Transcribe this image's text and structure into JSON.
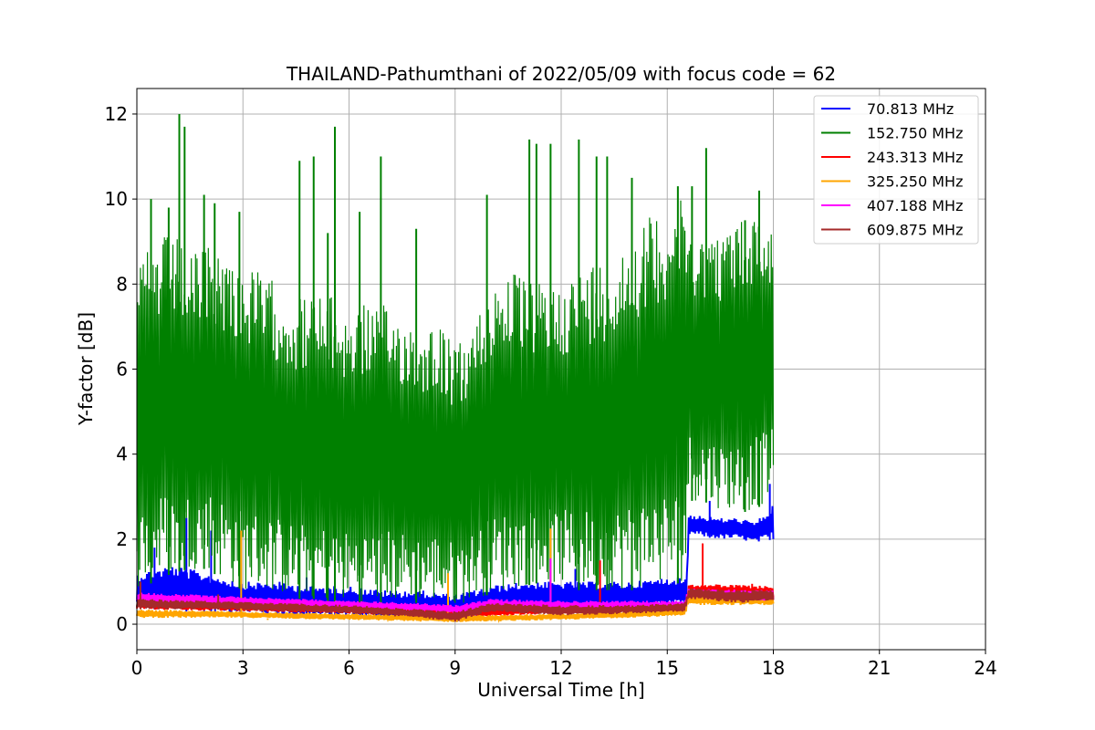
{
  "chart_data": {
    "type": "line",
    "title": "THAILAND-Pathumthani of 2022/05/09 with focus code = 62",
    "xlabel": "Universal Time [h]",
    "ylabel": "Y-factor [dB]",
    "xlim": [
      0,
      24
    ],
    "ylim": [
      -0.6,
      12.6
    ],
    "xticks": [
      "0",
      "3",
      "6",
      "9",
      "12",
      "15",
      "18",
      "21",
      "24"
    ],
    "yticks": [
      "0",
      "2",
      "4",
      "6",
      "8",
      "10",
      "12"
    ],
    "grid": true,
    "legend_position": "top-right",
    "series": [
      {
        "name": " 70.813 MHz",
        "color": "#0000ff",
        "band": [
          [
            0,
            0.4,
            1.2
          ],
          [
            1,
            0.3,
            1.4
          ],
          [
            2,
            0.3,
            1.2
          ],
          [
            3,
            0.25,
            1.0
          ],
          [
            4,
            0.2,
            1.0
          ],
          [
            5,
            0.15,
            0.9
          ],
          [
            6,
            0.15,
            0.9
          ],
          [
            7,
            0.1,
            0.8
          ],
          [
            8,
            0.1,
            0.8
          ],
          [
            9,
            0.05,
            0.7
          ],
          [
            10,
            0.2,
            0.9
          ],
          [
            11,
            0.3,
            1.0
          ],
          [
            12,
            0.3,
            1.0
          ],
          [
            13,
            0.3,
            1.0
          ],
          [
            14,
            0.3,
            1.0
          ],
          [
            15,
            0.4,
            1.1
          ],
          [
            15.55,
            0.4,
            1.1
          ],
          [
            15.6,
            2.1,
            2.6
          ],
          [
            16.5,
            2.0,
            2.5
          ],
          [
            17,
            2.0,
            2.5
          ],
          [
            17.5,
            1.9,
            2.4
          ],
          [
            18,
            2.0,
            2.8
          ]
        ],
        "spikes": [
          [
            0.5,
            1.8
          ],
          [
            1.4,
            2.5
          ],
          [
            2.1,
            2.2
          ],
          [
            4.8,
            1.1
          ],
          [
            8.8,
            1.0
          ],
          [
            12.4,
            1.3
          ],
          [
            16.2,
            2.9
          ],
          [
            17.9,
            3.3
          ]
        ]
      },
      {
        "name": "152.750 MHz",
        "color": "#008000",
        "band": [
          [
            0,
            0.8,
            8.5
          ],
          [
            0.5,
            1.0,
            9.0
          ],
          [
            1,
            1.2,
            9.3
          ],
          [
            1.5,
            1.3,
            8.6
          ],
          [
            2,
            1.3,
            9.0
          ],
          [
            2.5,
            1.0,
            8.8
          ],
          [
            3,
            0.8,
            8.4
          ],
          [
            3.5,
            0.8,
            8.3
          ],
          [
            4,
            0.7,
            8.0
          ],
          [
            4.5,
            0.6,
            7.7
          ],
          [
            5,
            0.6,
            7.8
          ],
          [
            5.5,
            0.5,
            7.7
          ],
          [
            6,
            0.5,
            7.3
          ],
          [
            6.5,
            0.5,
            7.6
          ],
          [
            7,
            0.5,
            7.5
          ],
          [
            7.5,
            0.5,
            7.3
          ],
          [
            8,
            0.5,
            7.0
          ],
          [
            8.5,
            0.5,
            7.2
          ],
          [
            9,
            0.4,
            6.5
          ],
          [
            9.5,
            0.6,
            7.0
          ],
          [
            10,
            0.7,
            8.0
          ],
          [
            10.5,
            0.8,
            8.4
          ],
          [
            11,
            0.9,
            8.1
          ],
          [
            11.5,
            1.0,
            8.0
          ],
          [
            12,
            0.9,
            8.1
          ],
          [
            12.5,
            0.8,
            8.3
          ],
          [
            13,
            0.8,
            8.6
          ],
          [
            13.5,
            0.8,
            8.6
          ],
          [
            14,
            0.8,
            9.2
          ],
          [
            14.5,
            0.9,
            9.6
          ],
          [
            15,
            0.9,
            9.9
          ],
          [
            15.5,
            1.0,
            10.0
          ],
          [
            15.6,
            2.9,
            9.4
          ],
          [
            16,
            2.9,
            9.2
          ],
          [
            16.5,
            2.7,
            9.2
          ],
          [
            17,
            2.6,
            9.5
          ],
          [
            17.5,
            2.7,
            9.7
          ],
          [
            18,
            3.0,
            9.4
          ]
        ],
        "spikes": [
          [
            0.4,
            10.0
          ],
          [
            0.9,
            9.8
          ],
          [
            1.2,
            12.0
          ],
          [
            1.35,
            11.7
          ],
          [
            1.9,
            10.1
          ],
          [
            2.2,
            9.9
          ],
          [
            2.9,
            9.7
          ],
          [
            4.6,
            10.9
          ],
          [
            5.0,
            11.0
          ],
          [
            5.4,
            9.2
          ],
          [
            5.6,
            11.7
          ],
          [
            6.3,
            9.7
          ],
          [
            6.9,
            11.0
          ],
          [
            7.9,
            9.3
          ],
          [
            9.9,
            10.1
          ],
          [
            11.1,
            11.4
          ],
          [
            11.3,
            11.3
          ],
          [
            11.7,
            11.3
          ],
          [
            12.5,
            11.4
          ],
          [
            13.0,
            11.0
          ],
          [
            13.3,
            11.0
          ],
          [
            14.0,
            10.5
          ],
          [
            15.3,
            10.3
          ],
          [
            15.7,
            10.3
          ],
          [
            16.1,
            11.2
          ],
          [
            17.2,
            9.5
          ],
          [
            17.6,
            10.2
          ]
        ]
      },
      {
        "name": "243.313 MHz",
        "color": "#ff0000",
        "band": [
          [
            0,
            0.35,
            0.6
          ],
          [
            3,
            0.3,
            0.5
          ],
          [
            6,
            0.25,
            0.45
          ],
          [
            9,
            0.15,
            0.35
          ],
          [
            12,
            0.25,
            0.45
          ],
          [
            15.5,
            0.3,
            0.5
          ],
          [
            15.6,
            0.65,
            0.95
          ],
          [
            18,
            0.6,
            0.9
          ]
        ],
        "spikes": [
          [
            13.1,
            1.5
          ],
          [
            16.0,
            1.9
          ],
          [
            17.4,
            0.95
          ]
        ]
      },
      {
        "name": "325.250 MHz",
        "color": "#ffa500",
        "band": [
          [
            0,
            0.15,
            0.35
          ],
          [
            3,
            0.15,
            0.3
          ],
          [
            6,
            0.1,
            0.25
          ],
          [
            9,
            0.05,
            0.2
          ],
          [
            12,
            0.1,
            0.25
          ],
          [
            15.5,
            0.2,
            0.35
          ],
          [
            15.6,
            0.45,
            0.7
          ],
          [
            18,
            0.45,
            0.65
          ]
        ],
        "spikes": [
          [
            2.95,
            2.2
          ],
          [
            3.7,
            0.1
          ],
          [
            8.8,
            1.2
          ],
          [
            11.7,
            2.25
          ]
        ]
      },
      {
        "name": "407.188 MHz",
        "color": "#ff00ff",
        "band": [
          [
            0,
            0.5,
            0.75
          ],
          [
            3,
            0.45,
            0.65
          ],
          [
            6,
            0.4,
            0.55
          ],
          [
            8,
            0.3,
            0.5
          ],
          [
            9,
            0.25,
            0.45
          ],
          [
            10,
            0.35,
            0.6
          ],
          [
            12,
            0.35,
            0.55
          ],
          [
            15.5,
            0.35,
            0.55
          ],
          [
            15.6,
            0.6,
            0.85
          ],
          [
            18,
            0.55,
            0.8
          ]
        ],
        "spikes": [
          [
            11.7,
            1.55
          ]
        ]
      },
      {
        "name": "609.875 MHz",
        "color": "#a52a2a",
        "band": [
          [
            0,
            0.35,
            0.6
          ],
          [
            2,
            0.35,
            0.55
          ],
          [
            4,
            0.3,
            0.5
          ],
          [
            6,
            0.25,
            0.45
          ],
          [
            8,
            0.15,
            0.35
          ],
          [
            9,
            0.05,
            0.3
          ],
          [
            10,
            0.3,
            0.5
          ],
          [
            12,
            0.2,
            0.45
          ],
          [
            14,
            0.25,
            0.45
          ],
          [
            15.5,
            0.3,
            0.5
          ],
          [
            15.6,
            0.6,
            0.85
          ],
          [
            17,
            0.5,
            0.8
          ],
          [
            18,
            0.55,
            0.8
          ]
        ],
        "spikes": [
          [
            0.1,
            1.0
          ],
          [
            2.3,
            0.7
          ]
        ]
      }
    ]
  }
}
